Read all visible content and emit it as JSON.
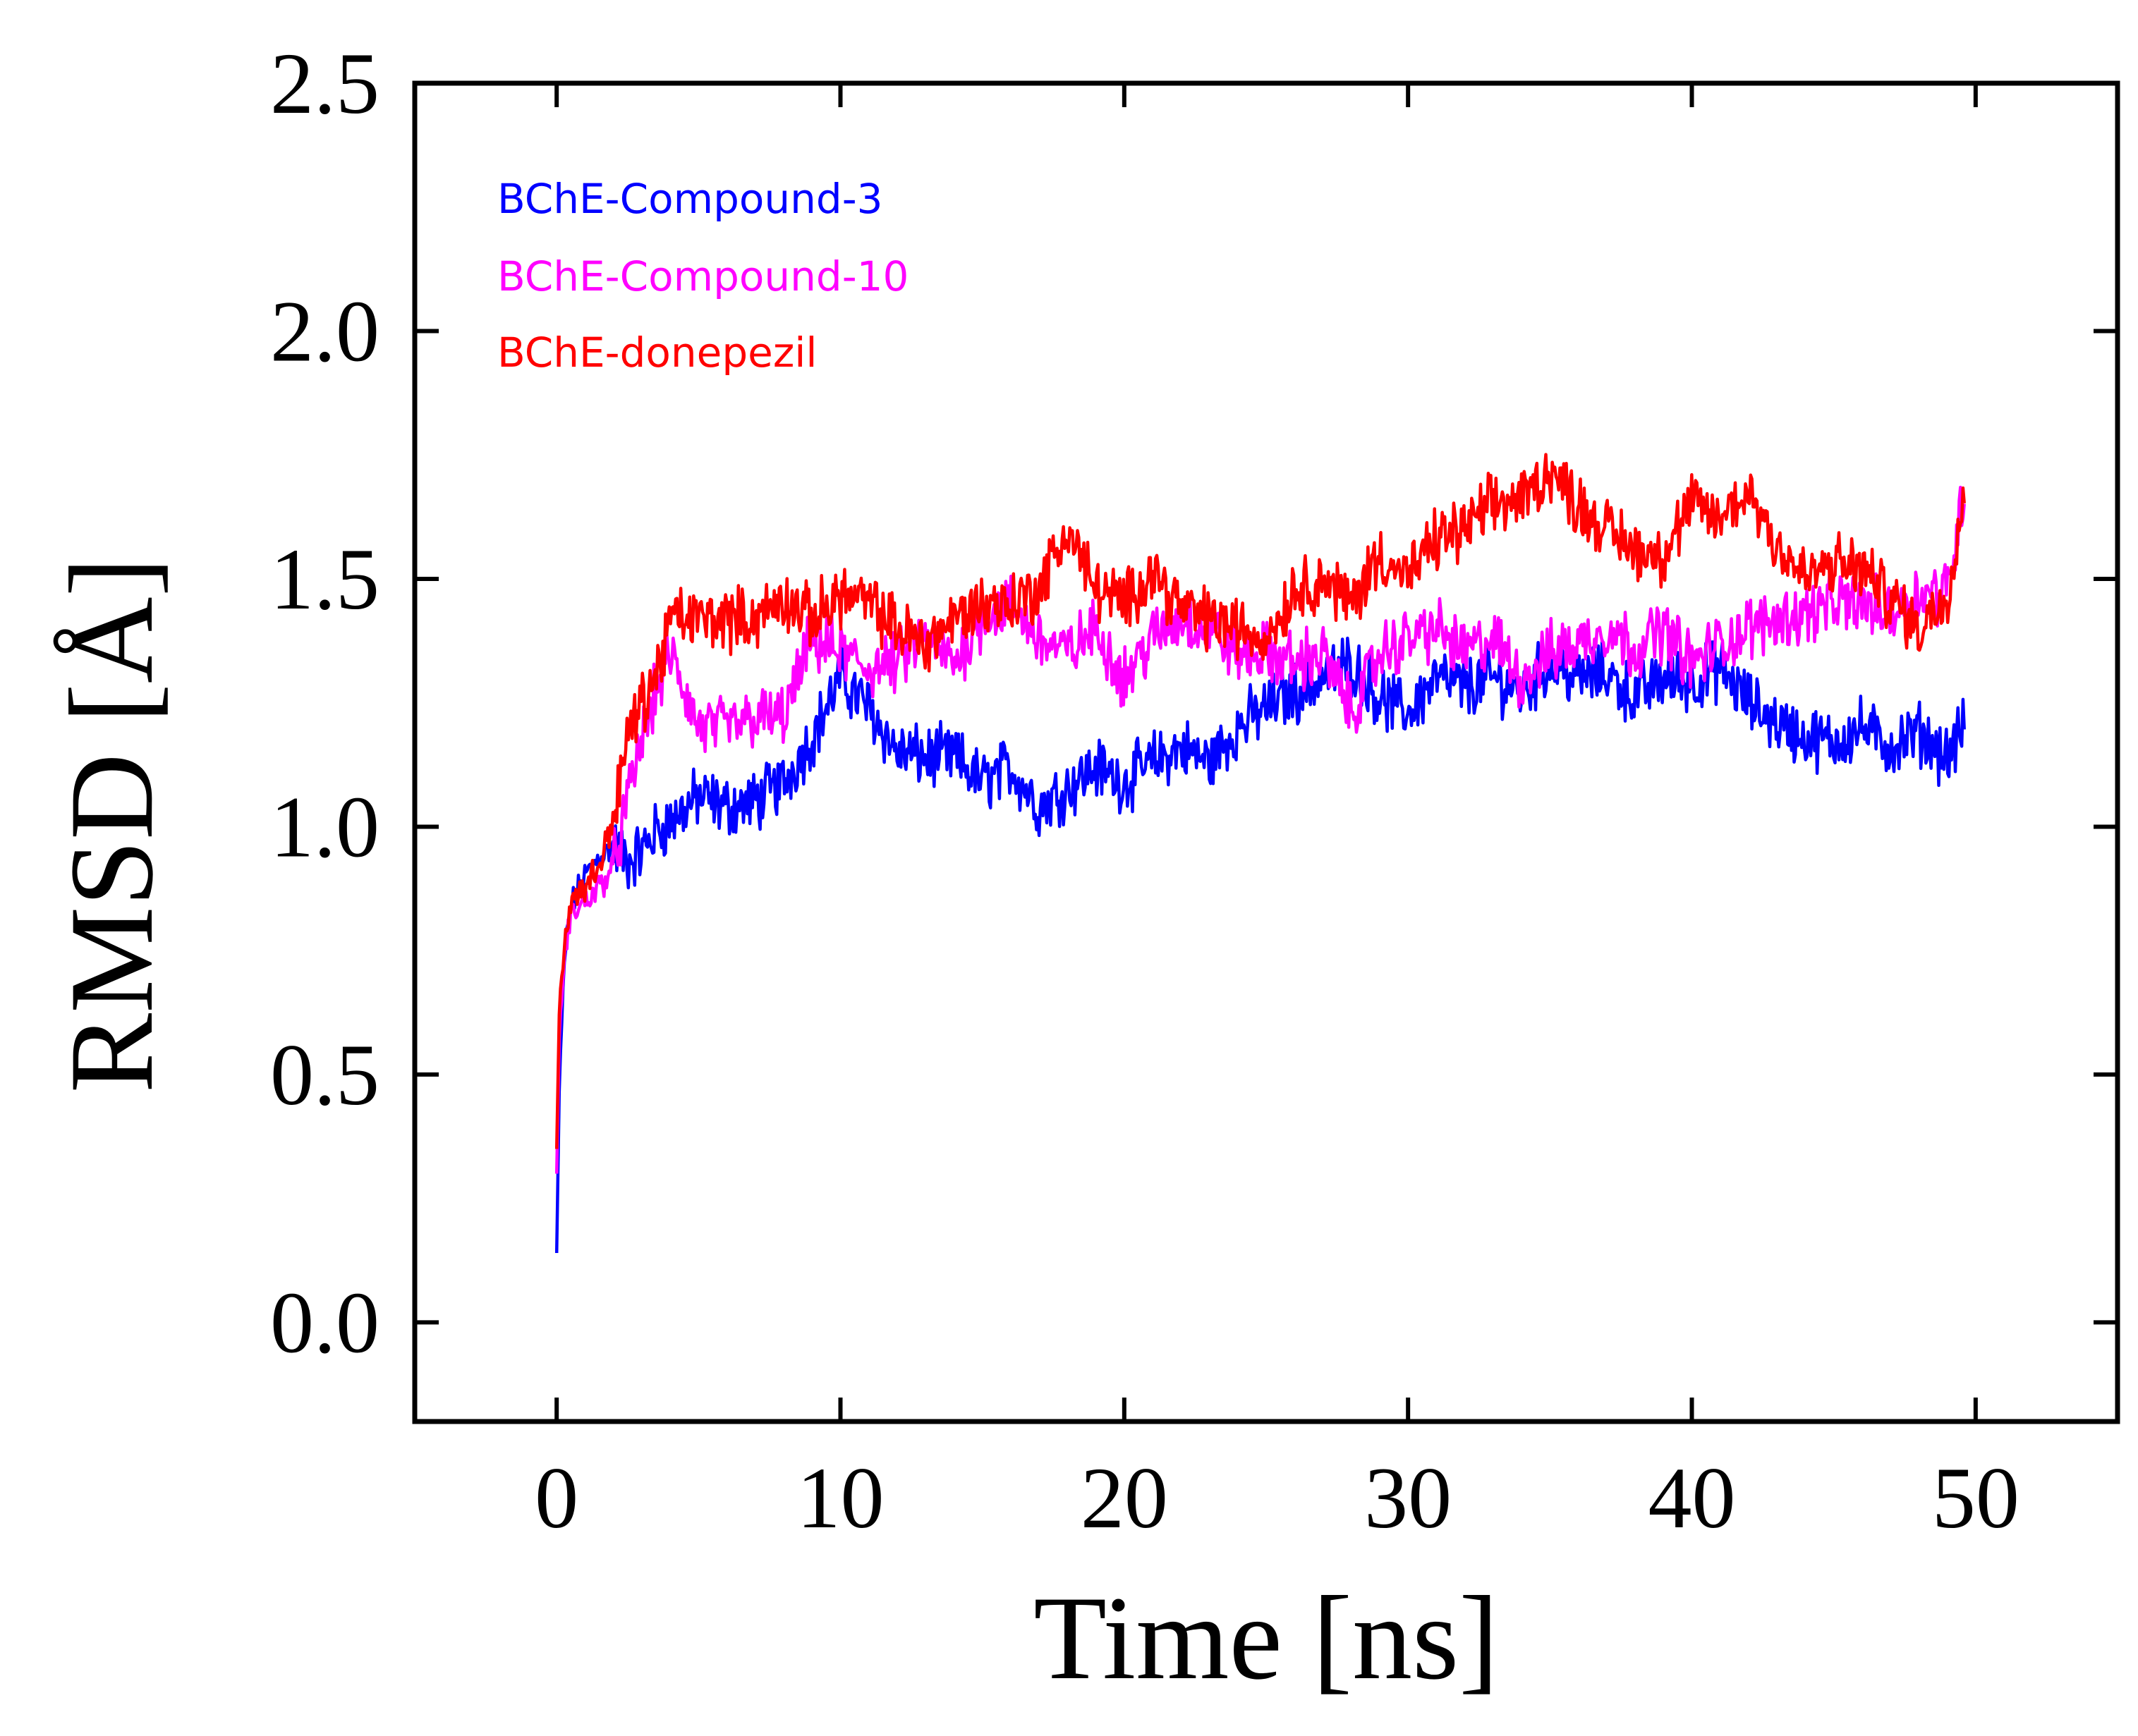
{
  "chart_data": {
    "type": "line",
    "title": "",
    "xlabel": "Time [ns]",
    "ylabel": "RMSD [Å]",
    "xlim": [
      -5,
      55
    ],
    "ylim": [
      -0.2,
      2.5
    ],
    "xticks": [
      0,
      10,
      20,
      30,
      40,
      50
    ],
    "xtick_labels": [
      "0",
      "10",
      "20",
      "30",
      "40",
      "50"
    ],
    "yticks": [
      0.0,
      0.5,
      1.0,
      1.5,
      2.0,
      2.5
    ],
    "ytick_labels": [
      "0.0",
      "0.5",
      "1.0",
      "1.5",
      "2.0",
      "2.5"
    ],
    "grid": false,
    "legend_position": "top-left",
    "series": [
      {
        "name": "BChE-Compound-3",
        "color": "#0000ff",
        "x": [
          0,
          0.1,
          0.3,
          0.5,
          1,
          1.5,
          2,
          2.5,
          3,
          3.5,
          4,
          5,
          6,
          7,
          8,
          9,
          10,
          11,
          12,
          13,
          14,
          15,
          16,
          17,
          18,
          19,
          20,
          21,
          22,
          23,
          24,
          25,
          26,
          27,
          28,
          29,
          30,
          31,
          32,
          33,
          34,
          35,
          36,
          37,
          38,
          39,
          40,
          41,
          42,
          43,
          44,
          45,
          46,
          47,
          48,
          49,
          49.6
        ],
        "y": [
          0.14,
          0.5,
          0.75,
          0.84,
          0.9,
          0.94,
          0.96,
          0.93,
          0.95,
          0.99,
          1.01,
          1.06,
          1.04,
          1.05,
          1.09,
          1.18,
          1.3,
          1.24,
          1.15,
          1.14,
          1.14,
          1.09,
          1.12,
          1.04,
          1.08,
          1.12,
          1.09,
          1.13,
          1.16,
          1.13,
          1.2,
          1.24,
          1.27,
          1.3,
          1.33,
          1.26,
          1.23,
          1.3,
          1.28,
          1.3,
          1.27,
          1.33,
          1.3,
          1.31,
          1.26,
          1.3,
          1.29,
          1.32,
          1.25,
          1.21,
          1.18,
          1.17,
          1.2,
          1.16,
          1.19,
          1.14,
          1.2
        ]
      },
      {
        "name": "BChE-Compound-10",
        "color": "#ff00ff",
        "x": [
          0,
          0.1,
          0.3,
          0.5,
          1,
          1.5,
          2,
          2.5,
          3,
          3.5,
          4,
          5,
          6,
          7,
          8,
          9,
          10,
          11,
          12,
          13,
          14,
          15,
          16,
          17,
          18,
          19,
          20,
          21,
          22,
          23,
          24,
          25,
          26,
          27,
          28,
          29,
          30,
          31,
          32,
          33,
          34,
          35,
          36,
          37,
          38,
          39,
          40,
          41,
          42,
          43,
          44,
          45,
          46,
          47,
          48,
          49,
          49.6
        ],
        "y": [
          0.3,
          0.6,
          0.75,
          0.82,
          0.85,
          0.88,
          0.92,
          1.05,
          1.18,
          1.27,
          1.35,
          1.2,
          1.2,
          1.22,
          1.22,
          1.38,
          1.35,
          1.32,
          1.33,
          1.38,
          1.33,
          1.42,
          1.45,
          1.38,
          1.35,
          1.4,
          1.3,
          1.38,
          1.42,
          1.4,
          1.35,
          1.35,
          1.33,
          1.35,
          1.23,
          1.35,
          1.38,
          1.4,
          1.35,
          1.38,
          1.3,
          1.35,
          1.37,
          1.4,
          1.36,
          1.4,
          1.33,
          1.37,
          1.4,
          1.42,
          1.43,
          1.45,
          1.45,
          1.43,
          1.47,
          1.48,
          1.68
        ]
      },
      {
        "name": "BChE-donepezil",
        "color": "#ff0000",
        "x": [
          0,
          0.1,
          0.3,
          0.5,
          1,
          1.5,
          2,
          2.5,
          3,
          3.5,
          4,
          5,
          6,
          7,
          8,
          9,
          10,
          11,
          12,
          13,
          14,
          15,
          16,
          17,
          18,
          19,
          20,
          21,
          22,
          23,
          24,
          25,
          26,
          27,
          28,
          29,
          30,
          31,
          32,
          33,
          34,
          35,
          36,
          37,
          38,
          39,
          40,
          41,
          42,
          43,
          44,
          45,
          46,
          47,
          48,
          49,
          49.6
        ],
        "y": [
          0.35,
          0.65,
          0.78,
          0.85,
          0.88,
          0.92,
          1.02,
          1.18,
          1.25,
          1.3,
          1.42,
          1.42,
          1.42,
          1.42,
          1.46,
          1.42,
          1.47,
          1.45,
          1.4,
          1.37,
          1.42,
          1.45,
          1.45,
          1.48,
          1.6,
          1.48,
          1.45,
          1.52,
          1.44,
          1.42,
          1.4,
          1.38,
          1.48,
          1.5,
          1.45,
          1.55,
          1.5,
          1.58,
          1.6,
          1.65,
          1.66,
          1.72,
          1.65,
          1.6,
          1.56,
          1.55,
          1.65,
          1.62,
          1.68,
          1.57,
          1.5,
          1.53,
          1.52,
          1.46,
          1.4,
          1.47,
          1.68
        ]
      }
    ]
  }
}
